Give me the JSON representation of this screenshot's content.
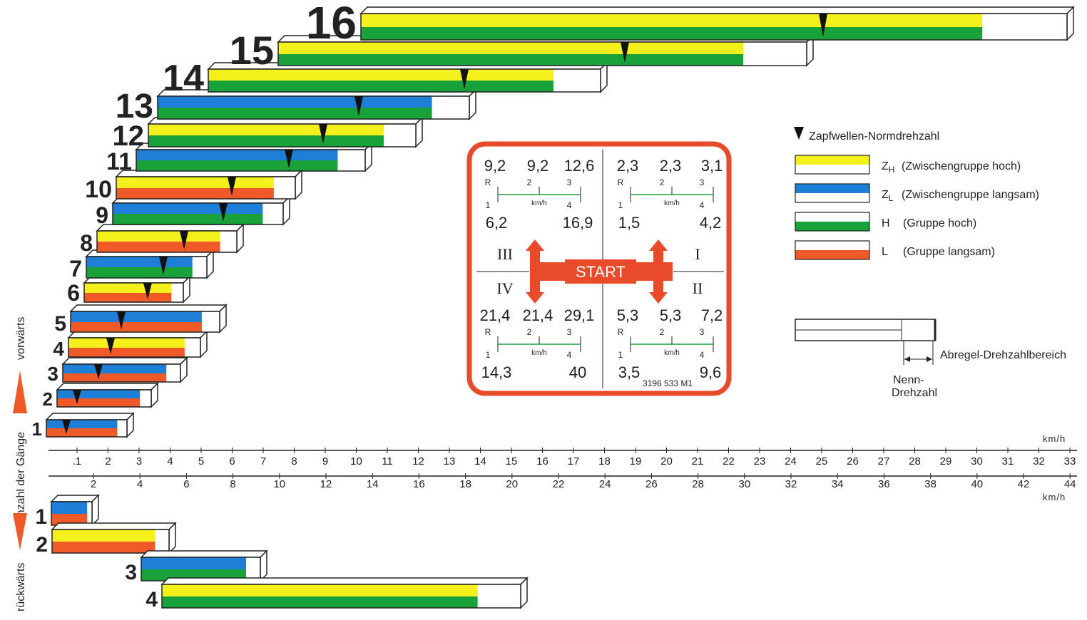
{
  "colors": {
    "yellow": "#f4f01c",
    "blue": "#1e7fd8",
    "green": "#1aa23a",
    "orange": "#ef5a28",
    "white": "#ffffff",
    "start_red": "#e84a2a"
  },
  "side_labels": {
    "axis": "Anzahl der Gänge",
    "forward": "vorwärts",
    "reverse": "rückwärts"
  },
  "forward_gears": [
    {
      "label": "1",
      "top": "blue",
      "bottom": "orange"
    },
    {
      "label": "2",
      "top": "blue",
      "bottom": "orange"
    },
    {
      "label": "3",
      "top": "blue",
      "bottom": "orange"
    },
    {
      "label": "4",
      "top": "yellow",
      "bottom": "orange"
    },
    {
      "label": "5",
      "top": "blue",
      "bottom": "orange"
    },
    {
      "label": "6",
      "top": "yellow",
      "bottom": "orange"
    },
    {
      "label": "7",
      "top": "blue",
      "bottom": "green"
    },
    {
      "label": "8",
      "top": "yellow",
      "bottom": "orange"
    },
    {
      "label": "9",
      "top": "blue",
      "bottom": "green"
    },
    {
      "label": "10",
      "top": "yellow",
      "bottom": "orange"
    },
    {
      "label": "11",
      "top": "blue",
      "bottom": "green"
    },
    {
      "label": "12",
      "top": "yellow",
      "bottom": "green"
    },
    {
      "label": "13",
      "top": "blue",
      "bottom": "green"
    },
    {
      "label": "14",
      "top": "yellow",
      "bottom": "green"
    },
    {
      "label": "15",
      "top": "yellow",
      "bottom": "green"
    },
    {
      "label": "16",
      "top": "yellow",
      "bottom": "green"
    }
  ],
  "reverse_gears": [
    {
      "label": "1",
      "top": "blue",
      "bottom": "orange"
    },
    {
      "label": "2",
      "top": "yellow",
      "bottom": "orange"
    },
    {
      "label": "3",
      "top": "blue",
      "bottom": "green"
    },
    {
      "label": "4",
      "top": "yellow",
      "bottom": "green"
    }
  ],
  "scale_top": {
    "unit": "km/h",
    "ticks": [
      ".1",
      "2",
      "3",
      "4",
      "5",
      "6",
      "7",
      "8",
      "9",
      "10",
      "11",
      "12",
      "13",
      "14",
      "15",
      "16",
      "17",
      "18",
      "19",
      "20",
      "21",
      "22",
      "23",
      "24",
      "25",
      "26",
      "27",
      "28",
      "29",
      "30",
      "31",
      "32",
      "33"
    ]
  },
  "scale_bottom": {
    "unit": "km/h",
    "ticks": [
      "2",
      "4",
      "6",
      "8",
      "10",
      "12",
      "14",
      "16",
      "18",
      "20",
      "22",
      "24",
      "26",
      "28",
      "30",
      "32",
      "34",
      "36",
      "38",
      "40",
      "42",
      "44"
    ]
  },
  "shift_panel": {
    "start_label": "START",
    "part_number": "3196 533 M1",
    "speed_unit": "km/h",
    "quadrants": [
      {
        "roman": "III",
        "top": [
          "9,2",
          "9,2",
          "12,6"
        ],
        "bottom": [
          "6,2",
          "16,9"
        ]
      },
      {
        "roman": "I",
        "top": [
          "2,3",
          "2,3",
          "3,1"
        ],
        "bottom": [
          "1,5",
          "4,2"
        ]
      },
      {
        "roman": "IV",
        "top": [
          "21,4",
          "21,4",
          "29,1"
        ],
        "bottom": [
          "14,3",
          "40"
        ]
      },
      {
        "roman": "II",
        "top": [
          "5,3",
          "5,3",
          "7,2"
        ],
        "bottom": [
          "3,5",
          "9,6"
        ]
      }
    ],
    "shift_positions": [
      "R",
      "2",
      "3",
      "1",
      "4"
    ]
  },
  "legend": {
    "pto_label": "Zapfwellen-Normdrehzahl",
    "items": [
      {
        "top": "yellow",
        "bottom": "white",
        "code": "Z",
        "sub": "H",
        "text": "(Zwischengruppe hoch)"
      },
      {
        "top": "blue",
        "bottom": "white",
        "code": "Z",
        "sub": "L",
        "text": "(Zwischengruppe langsam)"
      },
      {
        "top": "white",
        "bottom": "green",
        "code": "H",
        "sub": "",
        "text": "(Gruppe hoch)"
      },
      {
        "top": "white",
        "bottom": "orange",
        "code": "L",
        "sub": "",
        "text": "(Gruppe langsam)"
      }
    ],
    "rated_label_line1": "Nenn-",
    "rated_label_line2": "Drehzahl",
    "governor_label": "Abregel-Drehzahlbereich"
  }
}
